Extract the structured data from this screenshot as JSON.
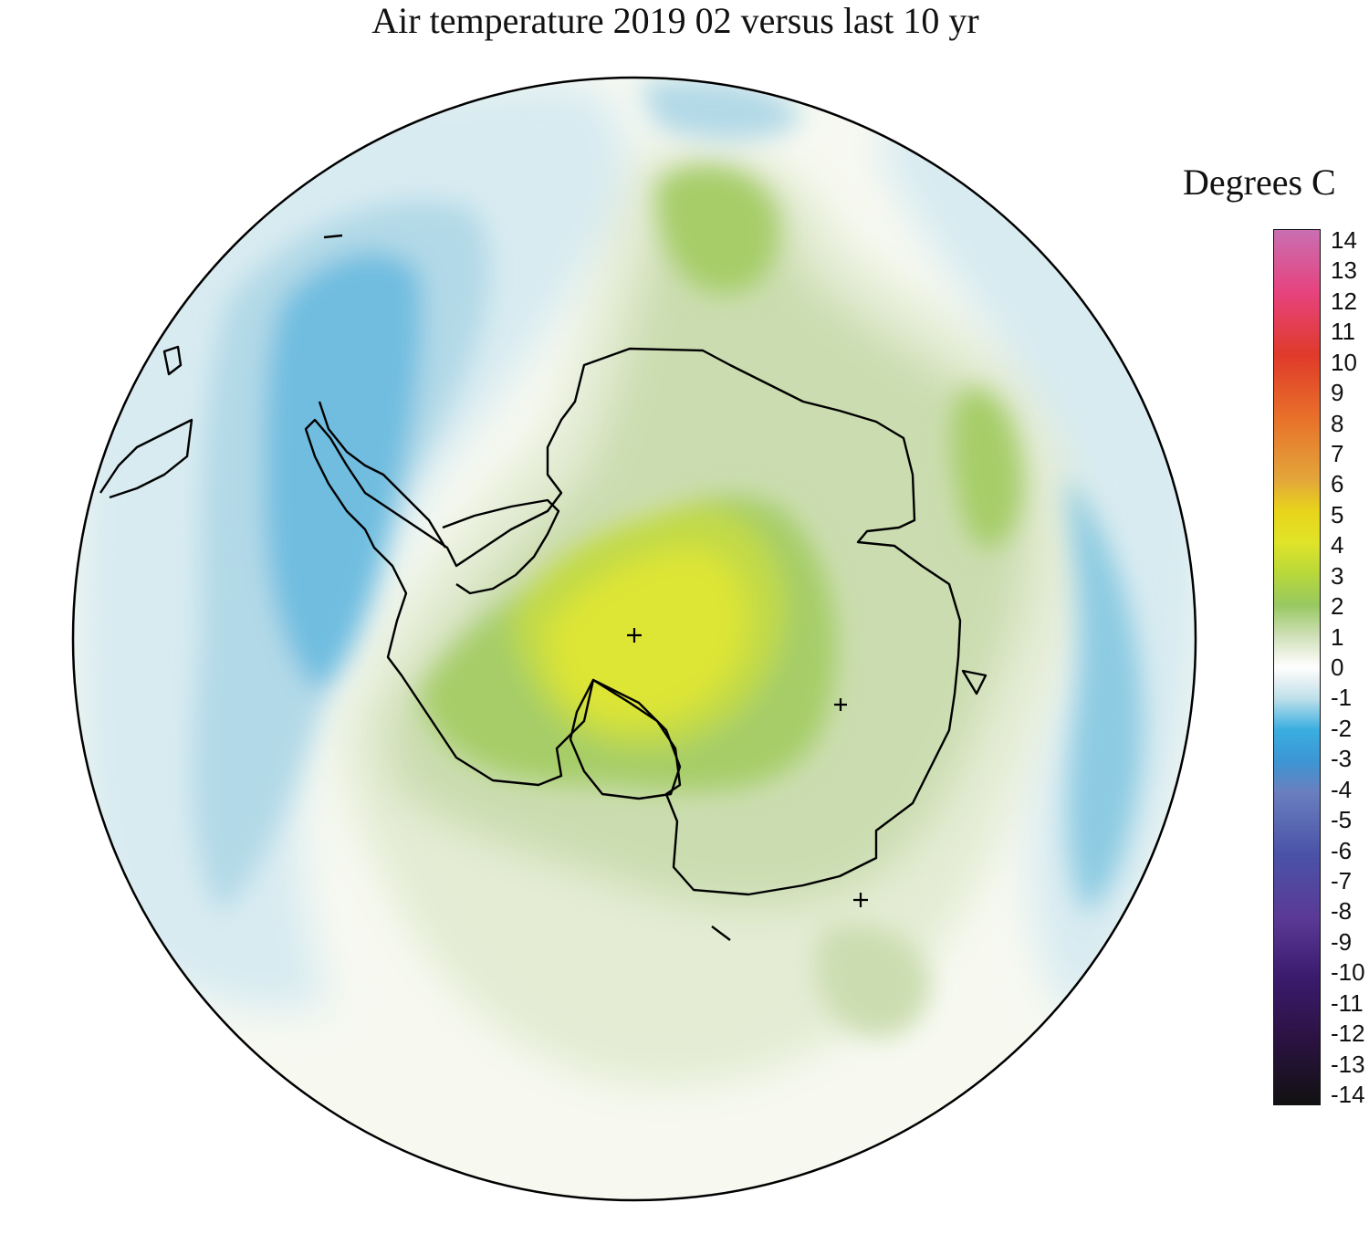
{
  "title": "Air temperature 2019 02 versus last 10 yr",
  "colorbar": {
    "label": "Degrees C",
    "ticks": [
      "14",
      "13",
      "12",
      "11",
      "10",
      "9",
      "8",
      "7",
      "6",
      "5",
      "4",
      "3",
      "2",
      "1",
      "0",
      "-1",
      "-2",
      "-3",
      "-4",
      "-5",
      "-6",
      "-7",
      "-8",
      "-9",
      "-10",
      "-11",
      "-12",
      "-13",
      "-14"
    ],
    "range": [
      -14,
      14
    ],
    "stops": [
      {
        "value": 14,
        "color": "#c96fb2"
      },
      {
        "value": 12,
        "color": "#e6437e"
      },
      {
        "value": 10,
        "color": "#e03a2a"
      },
      {
        "value": 8,
        "color": "#e8702a"
      },
      {
        "value": 6,
        "color": "#e3a63a"
      },
      {
        "value": 5,
        "color": "#e8d41a"
      },
      {
        "value": 4,
        "color": "#e0e428"
      },
      {
        "value": 3,
        "color": "#b8d83a"
      },
      {
        "value": 2,
        "color": "#98c860"
      },
      {
        "value": 1,
        "color": "#cfe0b8"
      },
      {
        "value": 0.3,
        "color": "#f2f5ea"
      },
      {
        "value": 0,
        "color": "#ffffff"
      },
      {
        "value": -0.3,
        "color": "#eef4f6"
      },
      {
        "value": -1,
        "color": "#bfe0ea"
      },
      {
        "value": -2,
        "color": "#3aaee0"
      },
      {
        "value": -3,
        "color": "#3c96d4"
      },
      {
        "value": -4,
        "color": "#6a7fbf"
      },
      {
        "value": -6,
        "color": "#4a52a8"
      },
      {
        "value": -8,
        "color": "#5a3a96"
      },
      {
        "value": -10,
        "color": "#3a1a6c"
      },
      {
        "value": -12,
        "color": "#2a1240"
      },
      {
        "value": -14,
        "color": "#111111"
      }
    ]
  },
  "map": {
    "projection": "south polar stereographic",
    "field_colors": {
      "pos_4": "#dde536",
      "pos_3": "#c2da46",
      "pos_2": "#a6cd68",
      "pos_1": "#cbddb0",
      "pos_05": "#e4ecd4",
      "zero": "#f7f9f1",
      "neg_05": "#d8ebf1",
      "neg_1": "#b2d9e7",
      "neg_15": "#8ccbe2",
      "neg_2": "#6fbde0"
    },
    "coastline_color": "#000000"
  }
}
